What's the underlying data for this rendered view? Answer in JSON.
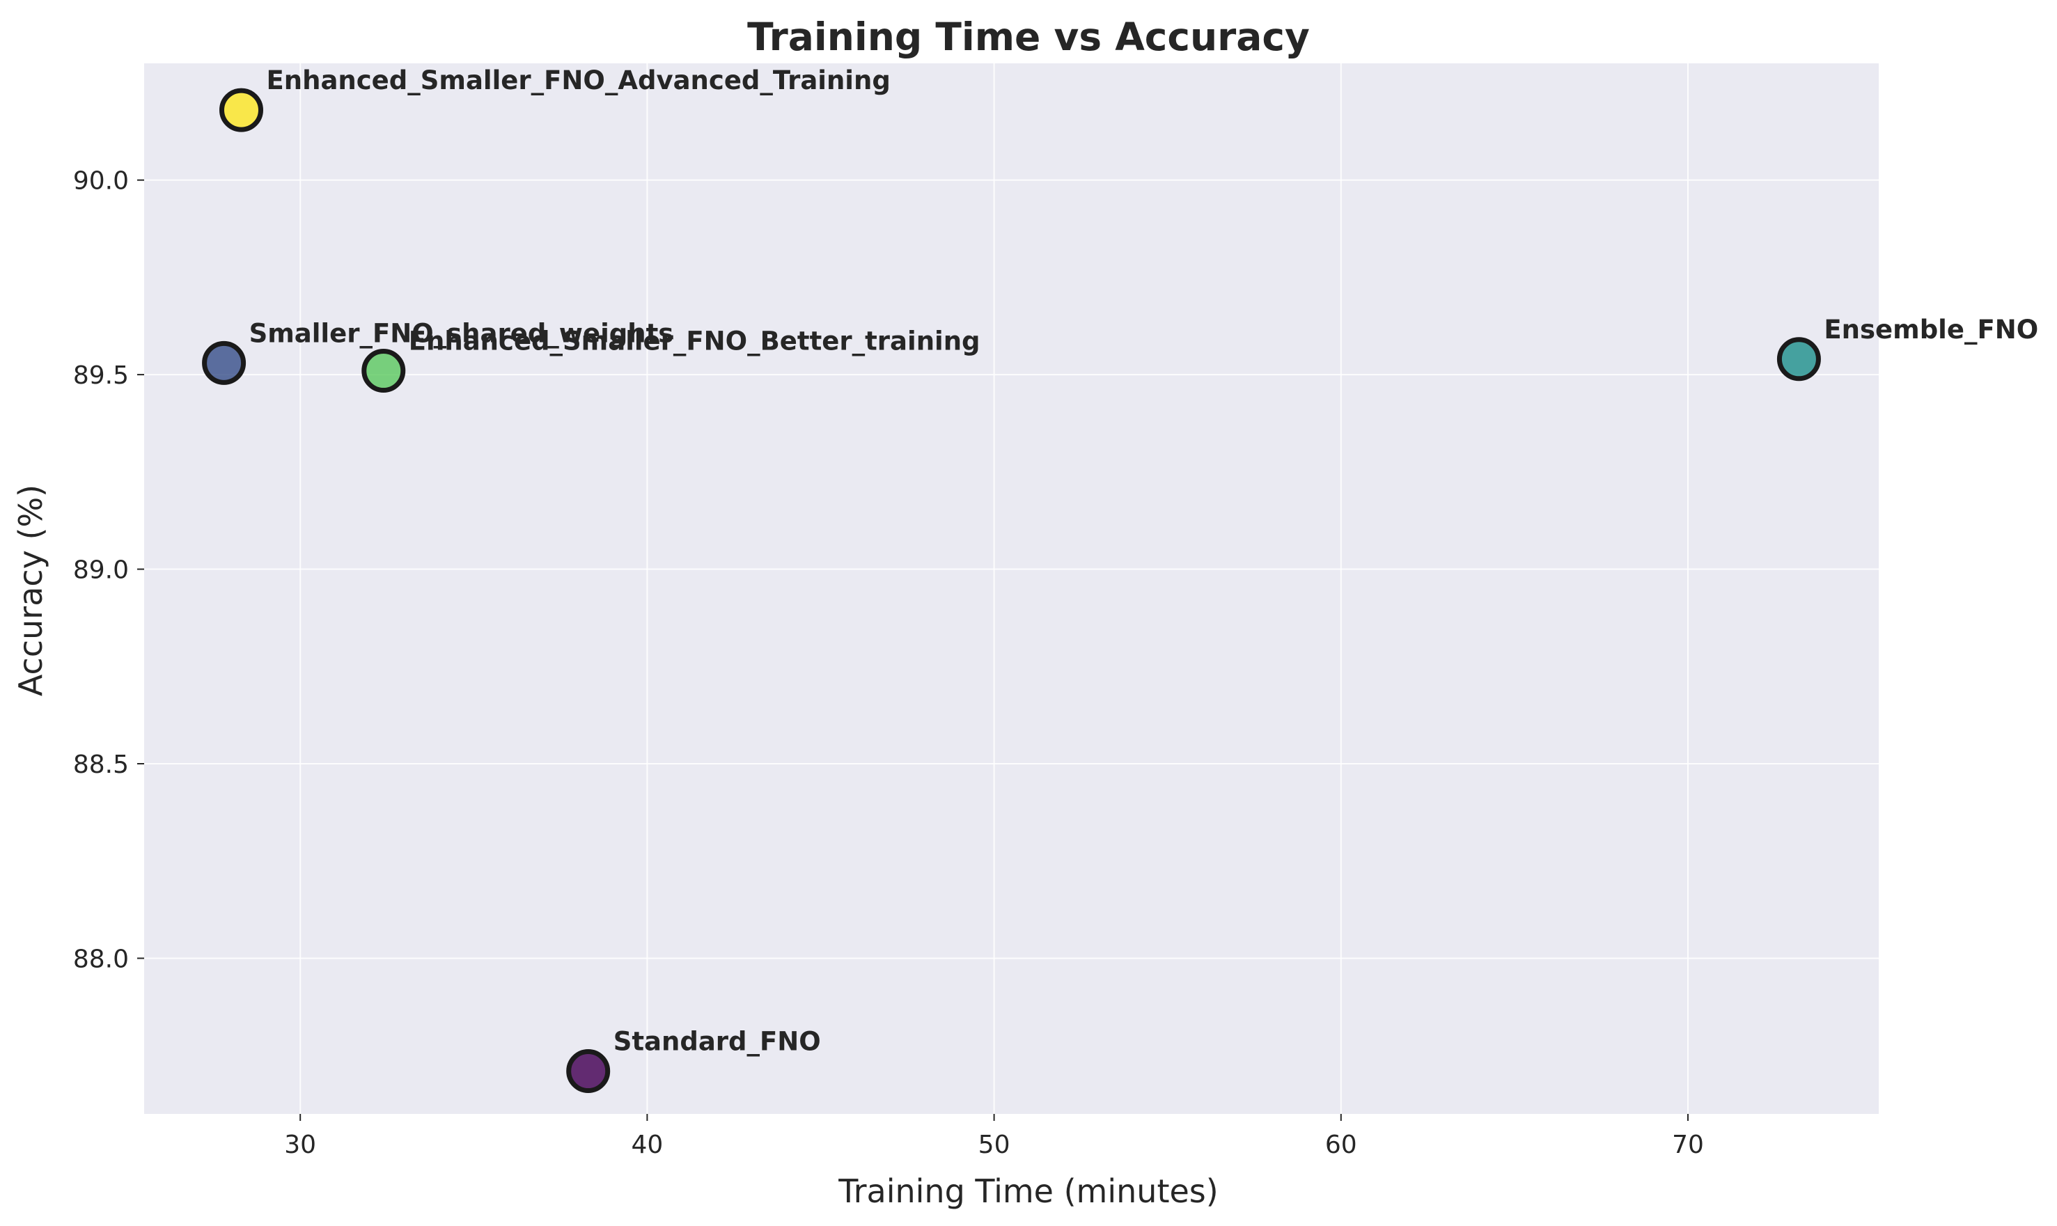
{
  "chart_data": {
    "type": "scatter",
    "title": "Training Time vs Accuracy",
    "xlabel": "Training Time (minutes)",
    "ylabel": "Accuracy (%)",
    "xlim": [
      25.5,
      75.5
    ],
    "ylim": [
      87.6,
      90.3
    ],
    "xticks": [
      30,
      40,
      50,
      60,
      70
    ],
    "xtick_labels": [
      "30",
      "40",
      "50",
      "60",
      "70"
    ],
    "yticks": [
      88.0,
      88.5,
      89.0,
      89.5,
      90.0
    ],
    "ytick_labels": [
      "88.0",
      "88.5",
      "89.0",
      "89.5",
      "90.0"
    ],
    "grid": true,
    "background": "#eaeaf2",
    "points": [
      {
        "label": "Enhanced_Smaller_FNO_Advanced_Training",
        "x": 28.3,
        "y": 90.18,
        "color": "#fde725"
      },
      {
        "label": "Smaller_FNO_shared_weights",
        "x": 27.8,
        "y": 89.53,
        "color": "#3b528b"
      },
      {
        "label": "Enhanced_Smaller_FNO_Better_training",
        "x": 32.4,
        "y": 89.51,
        "color": "#5ec962"
      },
      {
        "label": "Ensemble_FNO",
        "x": 73.2,
        "y": 89.54,
        "color": "#21918c"
      },
      {
        "label": "Standard_FNO",
        "x": 38.3,
        "y": 87.71,
        "color": "#440154"
      }
    ]
  }
}
